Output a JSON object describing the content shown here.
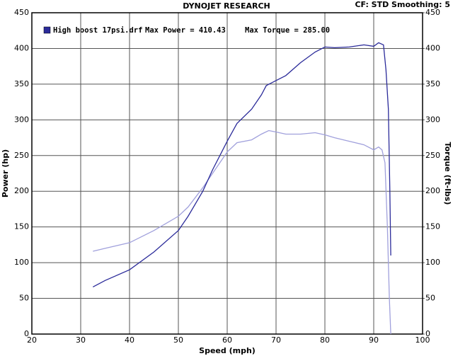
{
  "chart_data": {
    "type": "line",
    "title": "DYNOJET RESEARCH",
    "subtitle": "CF: STD  Smoothing: 5",
    "legend": {
      "label": "High boost 17psi.drf",
      "max_power": "Max Power = 410.43",
      "max_torque": "Max Torque = 285.00"
    },
    "x_label": "Speed (mph)",
    "y_label": "Power (hp)",
    "y2_label": "Torque (ft-lbs)",
    "xlim": [
      20,
      100
    ],
    "xticks": [
      20,
      30,
      40,
      50,
      60,
      70,
      80,
      90,
      100
    ],
    "ylim": [
      0,
      450
    ],
    "yticks": [
      0,
      50,
      100,
      150,
      200,
      250,
      300,
      350,
      400,
      450
    ],
    "y2lim": [
      0,
      450
    ],
    "y2ticks": [
      0,
      50,
      100,
      150,
      200,
      250,
      300,
      350,
      400,
      450
    ],
    "grid": true,
    "series": [
      {
        "color": "#2b2b9a",
        "x": [
          32.5,
          35,
          40,
          45,
          50,
          52,
          55,
          57,
          60,
          62,
          65,
          67,
          68,
          70,
          72,
          75,
          78,
          80,
          82,
          85,
          88,
          90,
          91,
          92,
          92.5,
          93,
          93.3,
          93.5
        ],
        "values": [
          66,
          75,
          90,
          115,
          145,
          165,
          200,
          230,
          270,
          295,
          315,
          335,
          348,
          355,
          362,
          380,
          395,
          402,
          401,
          402,
          405,
          403,
          408,
          405,
          370,
          315,
          200,
          110
        ]
      },
      {
        "color": "#a0a0dc",
        "axis": "y2",
        "x": [
          32.5,
          35,
          40,
          45,
          50,
          52,
          55,
          57,
          60,
          62,
          65,
          67,
          68.5,
          70,
          72,
          75,
          78,
          80,
          82,
          85,
          88,
          90,
          91,
          91.7,
          92.3,
          92.8,
          93.2,
          93.5
        ],
        "values": [
          116,
          120,
          128,
          145,
          165,
          178,
          205,
          225,
          255,
          268,
          272,
          280,
          285,
          283,
          280,
          280,
          282,
          279,
          275,
          270,
          265,
          258,
          262,
          258,
          240,
          150,
          50,
          0
        ]
      }
    ]
  }
}
